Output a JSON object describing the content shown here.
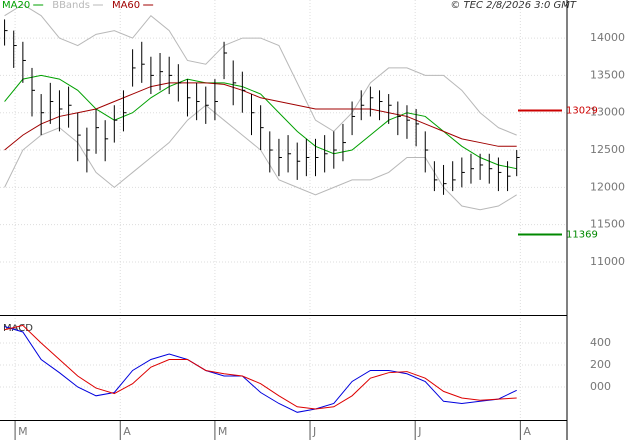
{
  "chart_data": [
    {
      "type": "ohlc",
      "source": "© TEC 2/8/2026 3:0 GMT",
      "xlim": [
        -1,
        123
      ],
      "ylim": [
        10290,
        14510
      ],
      "yticks": [
        11000,
        11500,
        12000,
        12500,
        13000,
        13500,
        14000
      ],
      "grid": true,
      "x": [
        0,
        2,
        4,
        6,
        8,
        10,
        12,
        14,
        16,
        18,
        20,
        22,
        24,
        26,
        28,
        30,
        32,
        34,
        36,
        38,
        40,
        42,
        44,
        46,
        48,
        50,
        52,
        54,
        56,
        58,
        60,
        62,
        64,
        66,
        68,
        70,
        72,
        74,
        76,
        78,
        80,
        82,
        84,
        86,
        88,
        90,
        92,
        94,
        96,
        98,
        100,
        102,
        104,
        106,
        108,
        110,
        112
      ],
      "high": [
        14250,
        14100,
        13950,
        13600,
        13250,
        13400,
        13300,
        13350,
        13000,
        12800,
        13050,
        12900,
        13100,
        13300,
        13850,
        13950,
        13750,
        13800,
        13750,
        13650,
        13450,
        13400,
        13350,
        13450,
        13950,
        13700,
        13550,
        13250,
        13100,
        12750,
        12650,
        12700,
        12600,
        12650,
        12650,
        12700,
        12750,
        12850,
        13150,
        13300,
        13350,
        13300,
        13250,
        13150,
        13100,
        13050,
        12750,
        12350,
        12300,
        12350,
        12400,
        12450,
        12450,
        12450,
        12400,
        12350,
        12500
      ],
      "low": [
        13900,
        13600,
        13400,
        12950,
        12700,
        12850,
        12750,
        12800,
        12350,
        12200,
        12450,
        12350,
        12600,
        12750,
        13350,
        13400,
        13250,
        13300,
        13250,
        13150,
        12950,
        12900,
        12850,
        12900,
        13450,
        13100,
        13000,
        12700,
        12500,
        12200,
        12150,
        12200,
        12100,
        12150,
        12150,
        12200,
        12250,
        12350,
        12700,
        12900,
        12950,
        12900,
        12850,
        12700,
        12650,
        12550,
        12200,
        11950,
        11900,
        11950,
        12000,
        12050,
        12100,
        12050,
        11950,
        11950,
        12150
      ],
      "close": [
        14100,
        13900,
        13700,
        13300,
        13000,
        13150,
        13050,
        13100,
        12700,
        12500,
        12800,
        12650,
        12900,
        13000,
        13600,
        13650,
        13500,
        13550,
        13500,
        13400,
        13200,
        13150,
        13100,
        13150,
        13800,
        13400,
        13300,
        13000,
        12800,
        12500,
        12400,
        12450,
        12350,
        12400,
        12400,
        12450,
        12500,
        12600,
        12950,
        13100,
        13200,
        13150,
        13100,
        12950,
        12900,
        12850,
        12500,
        12100,
        12050,
        12100,
        12200,
        12250,
        12300,
        12250,
        12200,
        12150,
        12400
      ],
      "series": [
        {
          "name": "MA20",
          "color": "#00a000",
          "x": [
            0,
            4,
            8,
            12,
            16,
            20,
            24,
            28,
            32,
            36,
            40,
            44,
            48,
            52,
            56,
            60,
            64,
            68,
            72,
            76,
            80,
            84,
            88,
            92,
            96,
            100,
            104,
            108,
            112
          ],
          "values": [
            13150,
            13450,
            13500,
            13450,
            13300,
            13050,
            12900,
            13000,
            13200,
            13350,
            13450,
            13400,
            13400,
            13350,
            13250,
            13000,
            12750,
            12550,
            12450,
            12500,
            12700,
            12900,
            13000,
            12950,
            12750,
            12550,
            12400,
            12300,
            12250
          ]
        },
        {
          "name": "BBands",
          "color": "#b8b8b8",
          "x": [
            0,
            4,
            8,
            12,
            16,
            20,
            24,
            28,
            32,
            36,
            40,
            44,
            48,
            52,
            56,
            60,
            64,
            68,
            72,
            76,
            80,
            84,
            88,
            92,
            96,
            100,
            104,
            108,
            112
          ],
          "values": [
            14300,
            14450,
            14300,
            14000,
            13900,
            14050,
            14100,
            14000,
            14300,
            14100,
            13700,
            13650,
            13900,
            14000,
            14000,
            13900,
            13400,
            12900,
            12750,
            13000,
            13400,
            13600,
            13600,
            13500,
            13500,
            13300,
            13000,
            12800,
            12700
          ],
          "lower": [
            12000,
            12500,
            12700,
            12800,
            12600,
            12200,
            12000,
            12200,
            12400,
            12600,
            12900,
            13100,
            12900,
            12700,
            12500,
            12100,
            12000,
            11900,
            12000,
            12100,
            12100,
            12200,
            12400,
            12400,
            12000,
            11750,
            11700,
            11750,
            11900
          ]
        },
        {
          "name": "MA60",
          "color": "#a00000",
          "x": [
            0,
            4,
            8,
            12,
            16,
            20,
            24,
            28,
            32,
            36,
            40,
            44,
            48,
            52,
            56,
            60,
            64,
            68,
            72,
            76,
            80,
            84,
            88,
            92,
            96,
            100,
            104,
            108,
            112
          ],
          "values": [
            12500,
            12700,
            12850,
            12950,
            13000,
            13050,
            13150,
            13250,
            13350,
            13400,
            13400,
            13400,
            13380,
            13300,
            13200,
            13150,
            13100,
            13050,
            13050,
            13050,
            13050,
            13000,
            12950,
            12850,
            12750,
            12650,
            12600,
            12550,
            12550
          ]
        }
      ],
      "levels": [
        {
          "value": 13029,
          "label": "13029",
          "color": "#cc0000"
        },
        {
          "value": 11369,
          "label": "11369",
          "color": "#008800"
        }
      ]
    },
    {
      "type": "line",
      "title": "MACD",
      "xlim": [
        -1,
        123
      ],
      "ylim": [
        -300,
        627
      ],
      "yticks": [
        {
          "value": 0,
          "label": "000"
        },
        200,
        400
      ],
      "grid": true,
      "xticks": [
        {
          "value": 2.3,
          "label": "M"
        },
        {
          "value": 25.3,
          "label": "A"
        },
        {
          "value": 46,
          "label": "M"
        },
        {
          "value": 66.8,
          "label": "J"
        },
        {
          "value": 89.8,
          "label": "J"
        },
        {
          "value": 112.8,
          "label": "A"
        }
      ],
      "x": [
        0,
        4,
        8,
        12,
        16,
        20,
        24,
        28,
        32,
        36,
        40,
        44,
        48,
        52,
        56,
        60,
        64,
        68,
        72,
        76,
        80,
        84,
        88,
        92,
        96,
        100,
        104,
        108,
        112
      ],
      "series": [
        {
          "color": "#0000dd",
          "values": [
            550,
            500,
            250,
            130,
            0,
            -80,
            -50,
            150,
            250,
            300,
            250,
            150,
            100,
            100,
            -50,
            -150,
            -230,
            -200,
            -150,
            50,
            150,
            150,
            120,
            50,
            -130,
            -150,
            -130,
            -110,
            -30
          ]
        },
        {
          "color": "#dd0000",
          "values": [
            520,
            560,
            400,
            250,
            100,
            -10,
            -60,
            30,
            180,
            250,
            250,
            150,
            120,
            100,
            30,
            -80,
            -180,
            -200,
            -180,
            -80,
            80,
            130,
            140,
            80,
            -40,
            -100,
            -120,
            -110,
            -100
          ]
        }
      ]
    }
  ]
}
